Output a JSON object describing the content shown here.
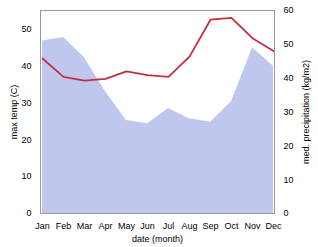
{
  "chart_data": {
    "type": "line",
    "categories": [
      "Jan",
      "Feb",
      "Mar",
      "Apr",
      "May",
      "Jun",
      "Jul",
      "Aug",
      "Sep",
      "Oct",
      "Nov",
      "Dec"
    ],
    "series": [
      {
        "type": "area",
        "axis": "y2",
        "color": "#aab4e8",
        "values": [
          51.0,
          52.0,
          46.0,
          36.0,
          27.5,
          26.5,
          31.0,
          28.0,
          27.0,
          33.0,
          49.0,
          43.5
        ]
      },
      {
        "type": "line",
        "color": "#c03040",
        "values": [
          42.0,
          37.0,
          36.0,
          36.5,
          38.5,
          37.5,
          37.0,
          42.5,
          52.5,
          53.0,
          47.5,
          44.0
        ]
      }
    ],
    "xlabel": "date (month)",
    "ylabel": "max temp (C)",
    "y2label": "med. precipitation (kg/m2)",
    "ylim": [
      0,
      55
    ],
    "yticks": [
      0,
      10,
      20,
      30,
      40,
      50
    ],
    "y2lim": [
      0,
      60
    ],
    "y2ticks": [
      0,
      10,
      20,
      30,
      40,
      50,
      60
    ]
  }
}
